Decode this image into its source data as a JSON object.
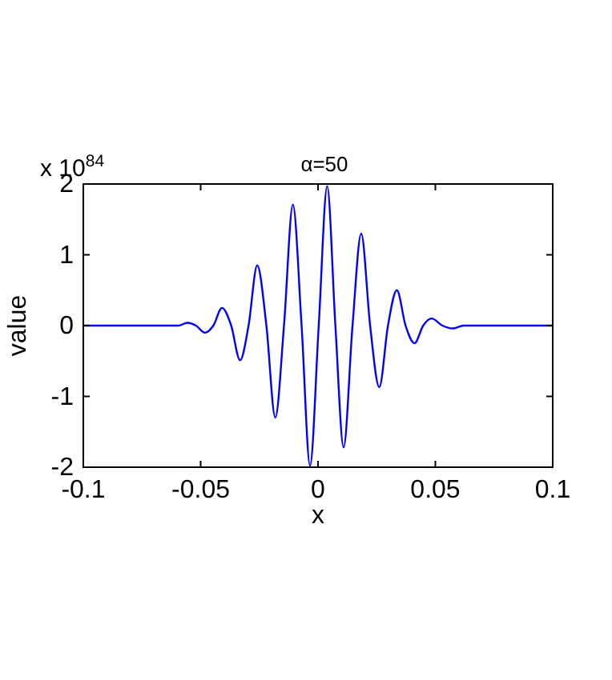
{
  "chart_data": {
    "type": "line",
    "title": "α=50",
    "xlabel": "x",
    "ylabel": "value",
    "annotations": [
      "x 10$^{84}$"
    ],
    "x": [
      -0.1,
      -0.07,
      -0.0595,
      -0.0557,
      -0.052,
      -0.0482,
      -0.0446,
      -0.0409,
      -0.037,
      -0.0332,
      -0.0296,
      -0.0259,
      -0.022,
      -0.0182,
      -0.0145,
      -0.0107,
      -0.007,
      -0.0034,
      0.0003,
      0.0039,
      0.0074,
      0.0109,
      0.0147,
      0.0184,
      0.0222,
      0.0261,
      0.0298,
      0.0336,
      0.0373,
      0.0411,
      0.0448,
      0.0484,
      0.053,
      0.0573,
      0.062,
      0.07,
      0.1
    ],
    "series": [
      {
        "color": "#0000ff",
        "values": [
          0,
          0,
          0,
          0.04,
          0,
          -0.1,
          0,
          0.25,
          0,
          -0.49,
          0,
          0.85,
          0,
          -1.3,
          0,
          1.71,
          0,
          -1.98,
          0,
          1.97,
          0,
          -1.72,
          0,
          1.3,
          0,
          -0.87,
          0,
          0.5,
          0,
          -0.25,
          0,
          0.1,
          0,
          -0.04,
          0,
          0,
          0
        ]
      }
    ],
    "xlim": [
      -0.1,
      0.1
    ],
    "xticks": [
      -0.1,
      -0.05,
      0,
      0.05,
      0.1
    ],
    "ylim": [
      -2,
      2
    ],
    "yticks": [
      -2,
      -1,
      0,
      1,
      2
    ],
    "grid": false,
    "marker": "none",
    "line_style": "solid"
  }
}
